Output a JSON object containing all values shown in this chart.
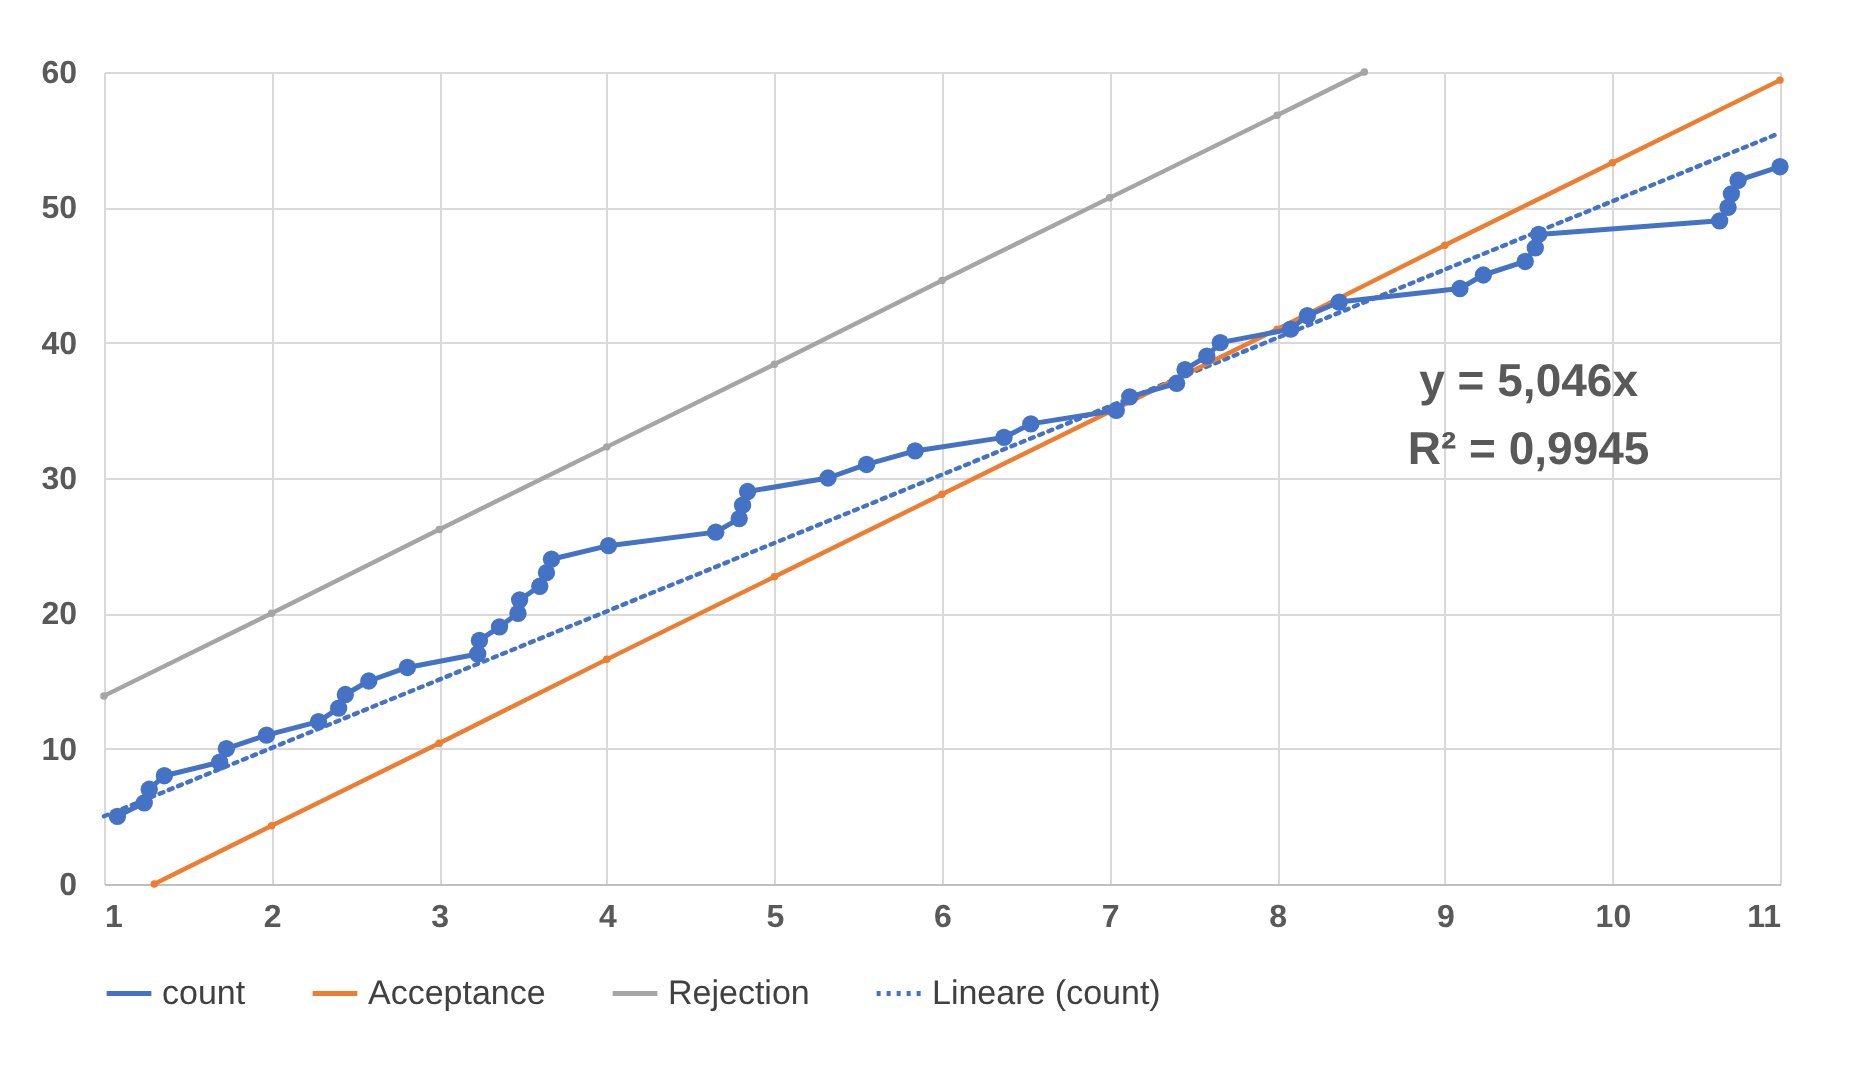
{
  "chart_data": {
    "type": "line",
    "xlim": [
      1,
      11
    ],
    "xticks": [
      1,
      2,
      3,
      4,
      5,
      6,
      7,
      8,
      9,
      10,
      11
    ],
    "ylim": [
      0,
      60
    ],
    "yticks": [
      0,
      10,
      20,
      30,
      40,
      50,
      60
    ],
    "grid": true,
    "legend": "bottom",
    "annotations": [
      "y = 5,046x",
      "R² = 0,9945"
    ],
    "series": [
      {
        "name": "count",
        "color": "#4472c4",
        "marker": "circle",
        "line_style": "solid",
        "x": [
          1.08,
          1.24,
          1.27,
          1.36,
          1.69,
          1.73,
          1.97,
          2.28,
          2.4,
          2.44,
          2.58,
          2.81,
          3.23,
          3.24,
          3.36,
          3.47,
          3.48,
          3.6,
          3.64,
          3.67,
          4.01,
          4.65,
          4.79,
          4.81,
          4.84,
          5.32,
          5.55,
          5.84,
          6.37,
          6.53,
          7.04,
          7.12,
          7.4,
          7.45,
          7.58,
          7.66,
          8.08,
          8.18,
          8.37,
          9.09,
          9.23,
          9.48,
          9.54,
          9.56,
          10.64,
          10.69,
          10.71,
          10.75,
          11.0
        ],
        "values": [
          5,
          6,
          7,
          8,
          9,
          10,
          11,
          12,
          13,
          14,
          15,
          16,
          17,
          18,
          19,
          20,
          21,
          22,
          23,
          24,
          25,
          26,
          27,
          28,
          29,
          30,
          31,
          32,
          33,
          34,
          35,
          36,
          37,
          38,
          39,
          40,
          41,
          42,
          43,
          44,
          45,
          46,
          47,
          48,
          49,
          50,
          51,
          52,
          53
        ]
      },
      {
        "name": "Acceptance",
        "color": "#ed7d31",
        "marker": "circle",
        "line_style": "solid",
        "x": [
          1.3,
          2,
          3,
          4,
          5,
          6,
          7,
          8,
          9,
          10,
          11
        ],
        "values": [
          0,
          4.3,
          10.4,
          16.6,
          22.7,
          28.8,
          34.9,
          41.0,
          47.2,
          53.3,
          59.4
        ]
      },
      {
        "name": "Rejection",
        "color": "#a5a5a5",
        "marker": "circle",
        "line_style": "solid",
        "x": [
          1,
          2,
          3,
          4,
          5,
          6,
          7,
          8,
          8.52
        ],
        "values": [
          13.9,
          20.0,
          26.2,
          32.3,
          38.4,
          44.6,
          50.7,
          56.8,
          60
        ]
      },
      {
        "name": "Lineare (count)",
        "color": "#4472c4",
        "marker": "none",
        "line_style": "dotted",
        "x": [
          1,
          11
        ],
        "values": [
          5.0,
          55.5
        ]
      }
    ]
  }
}
